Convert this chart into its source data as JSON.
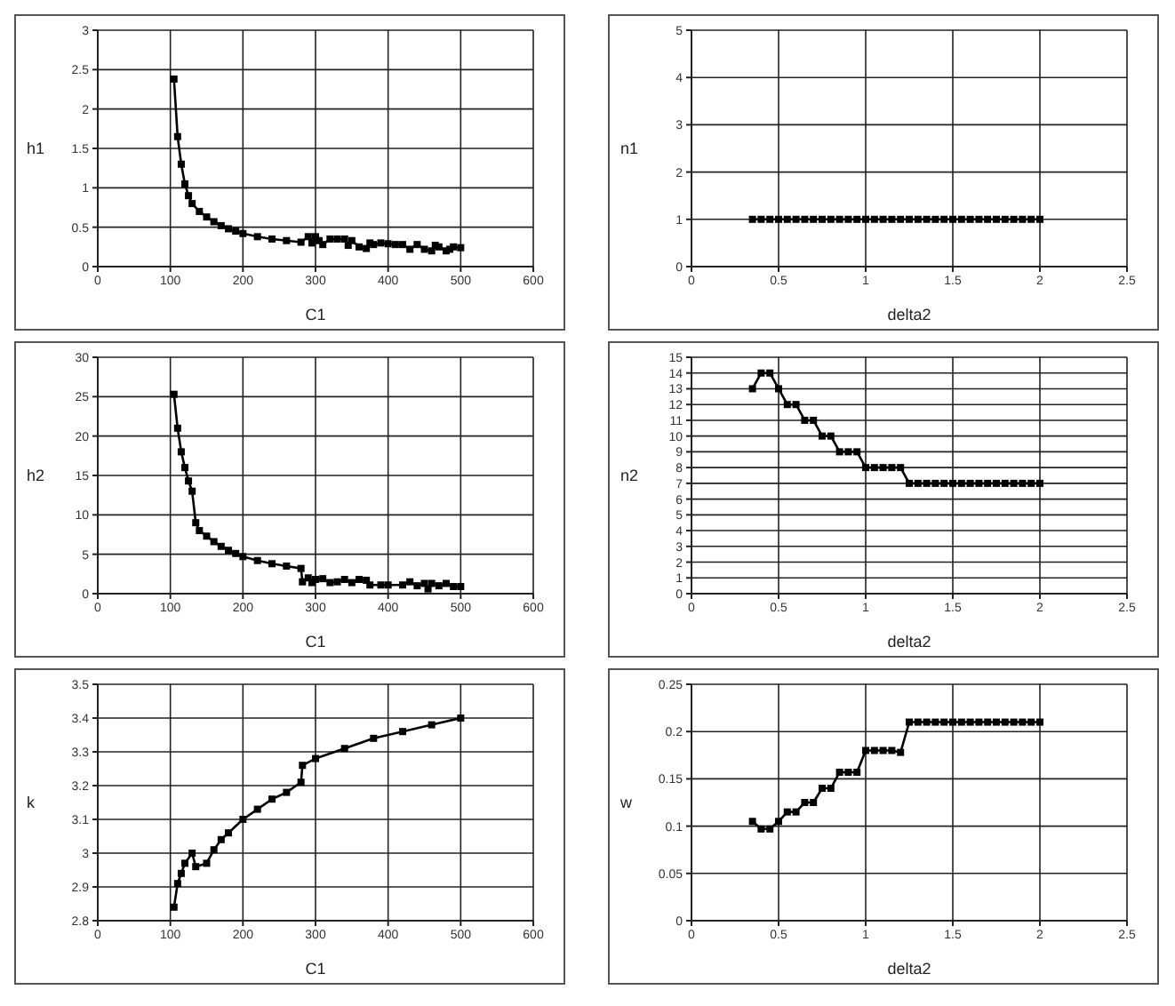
{
  "chart_data": [
    {
      "type": "line",
      "xlabel": "C1",
      "ylabel": "h1",
      "xlim": [
        0,
        600
      ],
      "xticks": [
        0,
        100,
        200,
        300,
        400,
        500,
        600
      ],
      "ylim": [
        0,
        3
      ],
      "yticks": [
        0,
        0.5,
        1,
        1.5,
        2,
        2.5,
        3
      ],
      "grid": true,
      "marker": "square",
      "line_style": "solid",
      "legend": false,
      "x": [
        105,
        110,
        115,
        120,
        125,
        130,
        140,
        150,
        160,
        170,
        180,
        190,
        200,
        220,
        240,
        260,
        280,
        290,
        295,
        300,
        305,
        310,
        320,
        330,
        340,
        345,
        350,
        360,
        370,
        375,
        380,
        390,
        400,
        410,
        420,
        430,
        440,
        450,
        460,
        465,
        470,
        480,
        485,
        490,
        500
      ],
      "series": [
        {
          "color": "#000000",
          "values": [
            2.38,
            1.65,
            1.3,
            1.05,
            0.9,
            0.8,
            0.7,
            0.63,
            0.57,
            0.52,
            0.48,
            0.45,
            0.42,
            0.38,
            0.35,
            0.33,
            0.31,
            0.38,
            0.3,
            0.38,
            0.33,
            0.28,
            0.35,
            0.35,
            0.35,
            0.27,
            0.33,
            0.25,
            0.23,
            0.3,
            0.28,
            0.3,
            0.29,
            0.28,
            0.28,
            0.22,
            0.28,
            0.22,
            0.2,
            0.27,
            0.25,
            0.2,
            0.22,
            0.25,
            0.24
          ]
        }
      ]
    },
    {
      "type": "line",
      "xlabel": "delta2",
      "ylabel": "n1",
      "xlim": [
        0,
        2.5
      ],
      "xticks": [
        0,
        0.5,
        1,
        1.5,
        2,
        2.5
      ],
      "ylim": [
        0,
        5
      ],
      "yticks": [
        0,
        1,
        2,
        3,
        4,
        5
      ],
      "grid": true,
      "marker": "square",
      "line_style": "solid",
      "legend": false,
      "x": [
        0.35,
        0.4,
        0.45,
        0.5,
        0.55,
        0.6,
        0.65,
        0.7,
        0.75,
        0.8,
        0.85,
        0.9,
        0.95,
        1,
        1.05,
        1.1,
        1.15,
        1.2,
        1.25,
        1.3,
        1.35,
        1.4,
        1.45,
        1.5,
        1.55,
        1.6,
        1.65,
        1.7,
        1.75,
        1.8,
        1.85,
        1.9,
        1.95,
        2
      ],
      "series": [
        {
          "color": "#000000",
          "values": [
            1,
            1,
            1,
            1,
            1,
            1,
            1,
            1,
            1,
            1,
            1,
            1,
            1,
            1,
            1,
            1,
            1,
            1,
            1,
            1,
            1,
            1,
            1,
            1,
            1,
            1,
            1,
            1,
            1,
            1,
            1,
            1,
            1,
            1
          ]
        }
      ]
    },
    {
      "type": "line",
      "xlabel": "C1",
      "ylabel": "h2",
      "xlim": [
        0,
        600
      ],
      "xticks": [
        0,
        100,
        200,
        300,
        400,
        500,
        600
      ],
      "ylim": [
        0,
        30
      ],
      "yticks": [
        0,
        5,
        10,
        15,
        20,
        25,
        30
      ],
      "grid": true,
      "marker": "square",
      "line_style": "solid",
      "legend": false,
      "x": [
        105,
        110,
        115,
        120,
        125,
        130,
        135,
        140,
        150,
        160,
        170,
        180,
        190,
        200,
        220,
        240,
        260,
        280,
        282,
        290,
        295,
        300,
        310,
        320,
        330,
        340,
        350,
        360,
        370,
        375,
        390,
        400,
        420,
        430,
        440,
        450,
        455,
        460,
        470,
        480,
        490,
        500
      ],
      "series": [
        {
          "color": "#000000",
          "values": [
            25.3,
            21,
            18,
            16,
            14.3,
            13,
            9,
            8,
            7.3,
            6.6,
            6,
            5.5,
            5.1,
            4.7,
            4.2,
            3.8,
            3.5,
            3.2,
            1.5,
            2,
            1.4,
            1.8,
            1.9,
            1.4,
            1.5,
            1.8,
            1.4,
            1.8,
            1.7,
            1.1,
            1.1,
            1.1,
            1.1,
            1.5,
            1,
            1.3,
            0.6,
            1.3,
            1,
            1.3,
            0.9,
            0.9
          ]
        }
      ]
    },
    {
      "type": "line",
      "xlabel": "delta2",
      "ylabel": "n2",
      "xlim": [
        0,
        2.5
      ],
      "xticks": [
        0,
        0.5,
        1,
        1.5,
        2,
        2.5
      ],
      "ylim": [
        0,
        15
      ],
      "yticks": [
        0,
        1,
        2,
        3,
        4,
        5,
        6,
        7,
        8,
        9,
        10,
        11,
        12,
        13,
        14,
        15
      ],
      "grid": true,
      "marker": "square",
      "line_style": "solid",
      "legend": false,
      "x": [
        0.35,
        0.4,
        0.45,
        0.5,
        0.55,
        0.6,
        0.65,
        0.7,
        0.75,
        0.8,
        0.85,
        0.9,
        0.95,
        1,
        1.05,
        1.1,
        1.15,
        1.2,
        1.25,
        1.3,
        1.35,
        1.4,
        1.45,
        1.5,
        1.55,
        1.6,
        1.65,
        1.7,
        1.75,
        1.8,
        1.85,
        1.9,
        1.95,
        2
      ],
      "series": [
        {
          "color": "#000000",
          "values": [
            13,
            14,
            14,
            13,
            12,
            12,
            11,
            11,
            10,
            10,
            9,
            9,
            9,
            8,
            8,
            8,
            8,
            8,
            7,
            7,
            7,
            7,
            7,
            7,
            7,
            7,
            7,
            7,
            7,
            7,
            7,
            7,
            7,
            7
          ]
        }
      ]
    },
    {
      "type": "line",
      "xlabel": "C1",
      "ylabel": "k",
      "xlim": [
        0,
        600
      ],
      "xticks": [
        0,
        100,
        200,
        300,
        400,
        500,
        600
      ],
      "ylim": [
        2.8,
        3.5
      ],
      "yticks": [
        2.8,
        2.9,
        3,
        3.1,
        3.2,
        3.3,
        3.4,
        3.5
      ],
      "grid": true,
      "marker": "square",
      "line_style": "solid",
      "legend": false,
      "x": [
        105,
        110,
        115,
        120,
        130,
        135,
        150,
        160,
        170,
        180,
        200,
        220,
        240,
        260,
        280,
        282,
        300,
        340,
        380,
        420,
        460,
        500
      ],
      "series": [
        {
          "color": "#000000",
          "values": [
            2.84,
            2.91,
            2.94,
            2.97,
            3.0,
            2.96,
            2.97,
            3.01,
            3.04,
            3.06,
            3.1,
            3.13,
            3.16,
            3.18,
            3.21,
            3.26,
            3.28,
            3.31,
            3.34,
            3.36,
            3.38,
            3.4
          ]
        }
      ]
    },
    {
      "type": "line",
      "xlabel": "delta2",
      "ylabel": "w",
      "xlim": [
        0,
        2.5
      ],
      "xticks": [
        0,
        0.5,
        1,
        1.5,
        2,
        2.5
      ],
      "ylim": [
        0,
        0.25
      ],
      "yticks": [
        0,
        0.05,
        0.1,
        0.15,
        0.2,
        0.25
      ],
      "grid": true,
      "marker": "square",
      "line_style": "solid",
      "legend": false,
      "x": [
        0.35,
        0.4,
        0.45,
        0.5,
        0.55,
        0.6,
        0.65,
        0.7,
        0.75,
        0.8,
        0.85,
        0.9,
        0.95,
        1,
        1.05,
        1.1,
        1.15,
        1.2,
        1.25,
        1.3,
        1.35,
        1.4,
        1.45,
        1.5,
        1.55,
        1.6,
        1.65,
        1.7,
        1.75,
        1.8,
        1.85,
        1.9,
        1.95,
        2
      ],
      "series": [
        {
          "color": "#000000",
          "values": [
            0.105,
            0.097,
            0.097,
            0.105,
            0.115,
            0.115,
            0.125,
            0.125,
            0.14,
            0.14,
            0.157,
            0.157,
            0.157,
            0.18,
            0.18,
            0.18,
            0.18,
            0.178,
            0.21,
            0.21,
            0.21,
            0.21,
            0.21,
            0.21,
            0.21,
            0.21,
            0.21,
            0.21,
            0.21,
            0.21,
            0.21,
            0.21,
            0.21,
            0.21
          ]
        }
      ]
    }
  ]
}
